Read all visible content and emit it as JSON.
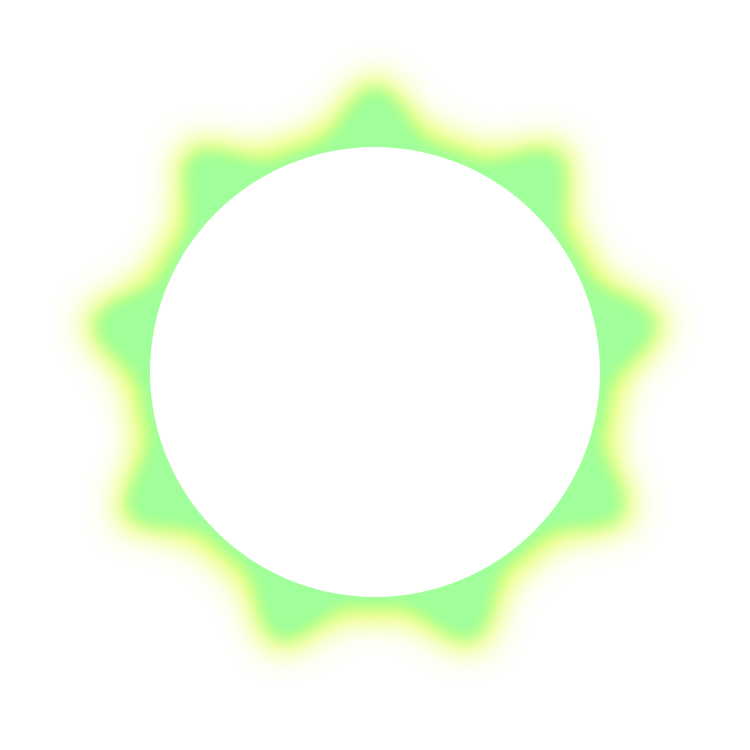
{
  "graphic": {
    "shape": "scalloped-ring",
    "lobe_count": 9,
    "colors": {
      "background": "#ffffff",
      "ring_fill": "#a0ff9a",
      "glow_edge": "#e2ff3a",
      "inner_disc": "#ffffff"
    }
  }
}
